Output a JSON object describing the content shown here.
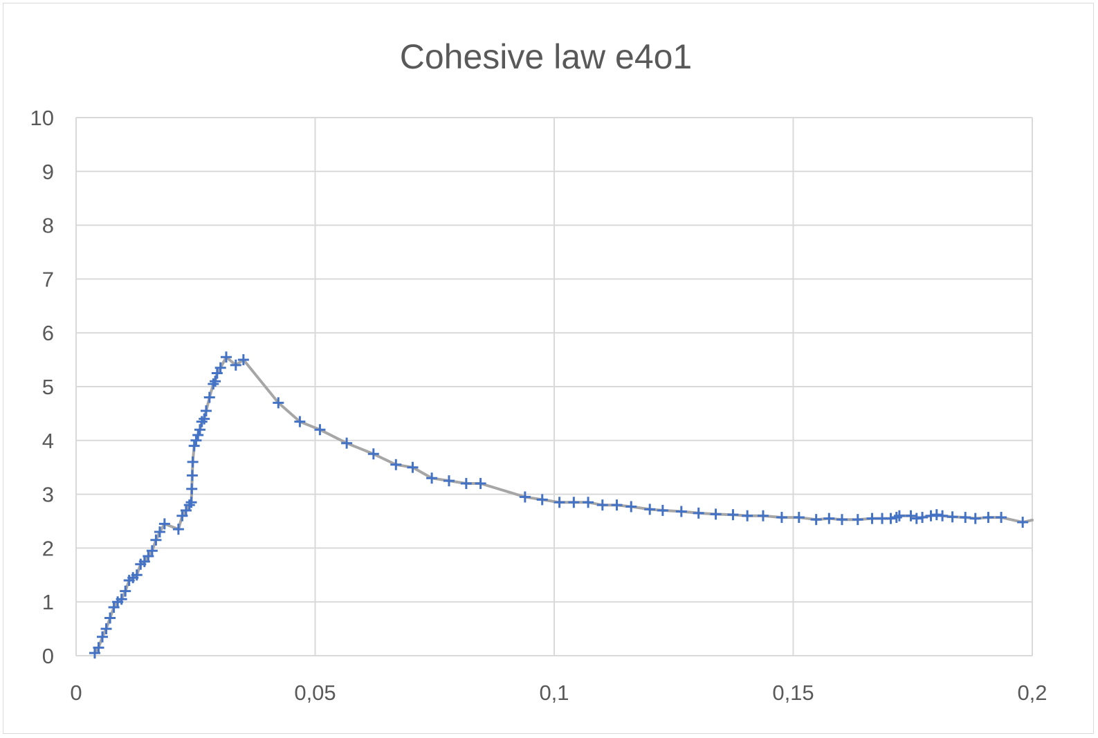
{
  "chart_data": {
    "type": "scatter",
    "title": "Cohesive law e4o1",
    "xlabel": "",
    "ylabel": "",
    "xlim": [
      0,
      0.2
    ],
    "ylim": [
      0,
      10
    ],
    "grid": true,
    "xticks": [
      0,
      0.05,
      0.1,
      0.15,
      0.2
    ],
    "xtick_labels": [
      "0",
      "0,05",
      "0,1",
      "0,15",
      "0,2"
    ],
    "yticks": [
      0,
      1,
      2,
      3,
      4,
      5,
      6,
      7,
      8,
      9,
      10
    ],
    "ytick_labels": [
      "0",
      "1",
      "2",
      "3",
      "4",
      "5",
      "6",
      "7",
      "8",
      "9",
      "10"
    ],
    "line_color": "#a6a6a6",
    "marker_color": "#4472c4",
    "marker": "plus",
    "series": [
      {
        "x": [
          0.0039,
          0.0047,
          0.0055,
          0.0063,
          0.0071,
          0.0079,
          0.0087,
          0.0095,
          0.0103,
          0.0111,
          0.0119,
          0.0127,
          0.0135,
          0.0143,
          0.0151,
          0.0159,
          0.0167,
          0.0175,
          0.0185,
          0.0214,
          0.0222,
          0.023,
          0.0237,
          0.0241,
          0.0242,
          0.0243,
          0.0244,
          0.0247,
          0.0251,
          0.0255,
          0.0259,
          0.0263,
          0.0268,
          0.0272,
          0.0279,
          0.0287,
          0.0291,
          0.0295,
          0.0302,
          0.0314,
          0.0334,
          0.035,
          0.0423,
          0.0468,
          0.051,
          0.0566,
          0.0622,
          0.0669,
          0.0704,
          0.0744,
          0.078,
          0.0816,
          0.0846,
          0.0939,
          0.0975,
          0.1011,
          0.1041,
          0.1071,
          0.1101,
          0.1131,
          0.1161,
          0.12,
          0.1227,
          0.1266,
          0.1302,
          0.1338,
          0.1374,
          0.1404,
          0.1437,
          0.1476,
          0.1512,
          0.1548,
          0.1575,
          0.1602,
          0.1635,
          0.1665,
          0.1686,
          0.1704,
          0.1716,
          0.1722,
          0.1746,
          0.1758,
          0.177,
          0.1788,
          0.18,
          0.1812,
          0.1833,
          0.186,
          0.1881,
          0.1908,
          0.1935,
          0.198,
          0.201
        ],
        "y": [
          0.05,
          0.15,
          0.35,
          0.5,
          0.7,
          0.9,
          1.0,
          1.05,
          1.2,
          1.4,
          1.45,
          1.5,
          1.7,
          1.75,
          1.85,
          1.95,
          2.15,
          2.3,
          2.45,
          2.35,
          2.6,
          2.7,
          2.8,
          2.85,
          3.1,
          3.35,
          3.6,
          3.9,
          4.0,
          4.1,
          4.2,
          4.35,
          4.4,
          4.55,
          4.8,
          5.05,
          5.1,
          5.25,
          5.35,
          5.55,
          5.4,
          5.5,
          4.7,
          4.35,
          4.2,
          3.95,
          3.75,
          3.55,
          3.5,
          3.3,
          3.25,
          3.2,
          3.2,
          2.95,
          2.9,
          2.85,
          2.85,
          2.85,
          2.8,
          2.8,
          2.77,
          2.72,
          2.7,
          2.68,
          2.65,
          2.63,
          2.62,
          2.6,
          2.6,
          2.57,
          2.57,
          2.53,
          2.55,
          2.53,
          2.53,
          2.55,
          2.55,
          2.55,
          2.57,
          2.6,
          2.6,
          2.55,
          2.57,
          2.6,
          2.62,
          2.6,
          2.58,
          2.57,
          2.55,
          2.57,
          2.57,
          2.48,
          2.52
        ]
      }
    ]
  }
}
